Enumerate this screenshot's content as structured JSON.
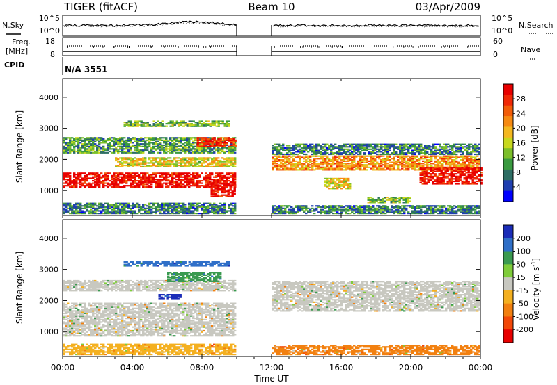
{
  "header": {
    "station": "TIGER (fitACF)",
    "beam": "Beam 10",
    "date": "03/Apr/2009"
  },
  "noise_panel": {
    "left_label": "N.Sky",
    "right_label": "N.Search",
    "left_ticks": [
      "10^5",
      "10^0"
    ],
    "right_ticks": [
      "10^5",
      "10^0"
    ]
  },
  "freq_panel": {
    "left_label_1": "Freq.",
    "left_label_2": "[MHz]",
    "left_ticks": [
      "18",
      "8"
    ],
    "right_label": "Nave",
    "right_ticks": [
      "60",
      "0"
    ]
  },
  "cpid": {
    "label": "CPID",
    "value": "N/A 3551"
  },
  "chart_data": [
    {
      "type": "heatmap",
      "quantity": "power",
      "ylabel": "Slant Range [km]",
      "ylim": [
        200,
        4600
      ],
      "yticks": [
        "1000",
        "2000",
        "3000",
        "4000"
      ],
      "xlim_hours": [
        0,
        24
      ],
      "data_gap_hours": [
        10,
        12
      ],
      "colorbar_label": "Power [dB]",
      "colorbar_ticks": [
        "4",
        "8",
        "12",
        "16",
        "20",
        "24",
        "28"
      ],
      "colorbar_colors": [
        "#0000ff",
        "#1f3fb0",
        "#2e6e64",
        "#3a9a40",
        "#7cbf2a",
        "#c8d81e",
        "#f4b820",
        "#f68a12",
        "#f25c08",
        "#f02806",
        "#e80000"
      ],
      "echo_bands": [
        {
          "t0": 0.0,
          "t1": 9.9,
          "r0": 1100,
          "r1": 1550,
          "level": 28
        },
        {
          "t0": 3.0,
          "t1": 9.9,
          "r0": 1750,
          "r1": 2050,
          "level": 16
        },
        {
          "t0": 0.0,
          "t1": 9.9,
          "r0": 2200,
          "r1": 2700,
          "level": 10
        },
        {
          "t0": 3.5,
          "t1": 9.5,
          "r0": 3050,
          "r1": 3250,
          "level": 12
        },
        {
          "t0": 7.7,
          "t1": 9.9,
          "r0": 2400,
          "r1": 2700,
          "level": 26
        },
        {
          "t0": 8.5,
          "t1": 9.9,
          "r0": 800,
          "r1": 1250,
          "level": 28
        },
        {
          "t0": 12.0,
          "t1": 24.0,
          "r0": 1650,
          "r1": 2100,
          "level": 20
        },
        {
          "t0": 12.0,
          "t1": 24.0,
          "r0": 2150,
          "r1": 2500,
          "level": 8
        },
        {
          "t0": 20.5,
          "t1": 24.0,
          "r0": 1200,
          "r1": 1750,
          "level": 28
        },
        {
          "t0": 15.0,
          "t1": 16.5,
          "r0": 1050,
          "r1": 1400,
          "level": 16
        },
        {
          "t0": 17.5,
          "t1": 20.0,
          "r0": 600,
          "r1": 800,
          "level": 12
        },
        {
          "t0": 0.0,
          "t1": 9.9,
          "r0": 250,
          "r1": 600,
          "level": 8
        },
        {
          "t0": 12.0,
          "t1": 24.0,
          "r0": 250,
          "r1": 500,
          "level": 8
        }
      ]
    },
    {
      "type": "heatmap",
      "quantity": "velocity",
      "ylabel": "Slant Range [km]",
      "ylim": [
        200,
        4600
      ],
      "yticks": [
        "1000",
        "2000",
        "3000",
        "4000"
      ],
      "xlim_hours": [
        0,
        24
      ],
      "data_gap_hours": [
        10,
        12
      ],
      "colorbar_label": "Velocity [m s^-1]",
      "colorbar_label_main": "Velocity [m s",
      "colorbar_label_sup": "-1",
      "colorbar_label_end": "]",
      "colorbar_ticks": [
        "200",
        "100",
        "50",
        "15",
        "-15",
        "-50",
        "-100",
        "-200"
      ],
      "colorbar_colors": [
        "#1a2cb8",
        "#2f6fc8",
        "#3a9a50",
        "#7fcc3a",
        "#c8c8c0",
        "#f4b020",
        "#f28010",
        "#f24808",
        "#e80000"
      ],
      "echo_bands": [
        {
          "t0": 0.0,
          "t1": 9.9,
          "r0": 850,
          "r1": 1900,
          "level": 0
        },
        {
          "t0": 0.0,
          "t1": 9.9,
          "r0": 2300,
          "r1": 2650,
          "level": 5
        },
        {
          "t0": 3.5,
          "t1": 9.5,
          "r0": 3100,
          "r1": 3250,
          "level": 100
        },
        {
          "t0": 6.0,
          "t1": 9.0,
          "r0": 2600,
          "r1": 2900,
          "level": 70
        },
        {
          "t0": 5.5,
          "t1": 6.8,
          "r0": 2050,
          "r1": 2200,
          "level": 150
        },
        {
          "t0": 12.0,
          "t1": 24.0,
          "r0": 1650,
          "r1": 2300,
          "level": 0
        },
        {
          "t0": 12.0,
          "t1": 24.0,
          "r0": 2350,
          "r1": 2600,
          "level": 5
        },
        {
          "t0": 0.0,
          "t1": 9.9,
          "r0": 250,
          "r1": 600,
          "level": -30
        },
        {
          "t0": 12.0,
          "t1": 24.0,
          "r0": 250,
          "r1": 550,
          "level": -40
        }
      ]
    }
  ],
  "x_axis": {
    "label": "Time UT",
    "ticks": [
      "00:00",
      "04:00",
      "08:00",
      "12:00",
      "16:00",
      "20:00",
      "00:00"
    ],
    "tick_hours": [
      0,
      4,
      8,
      12,
      16,
      20,
      24
    ]
  }
}
